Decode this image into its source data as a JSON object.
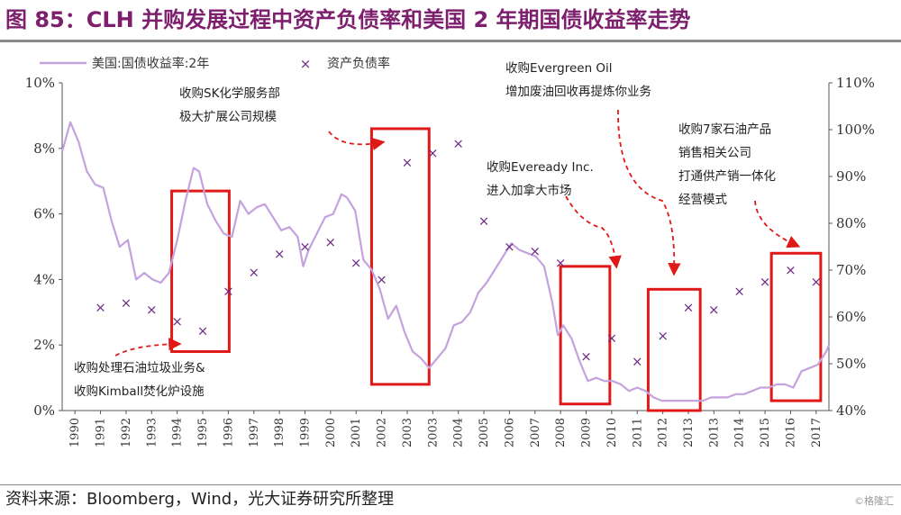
{
  "title": "图 85：CLH 并购发展过程中资产负债率和美国 2 年期国债收益率走势",
  "source": "资料来源：Bloomberg，Wind，光大证券研究所整理",
  "watermark": "©格隆汇",
  "colors": {
    "title": "#7d1f6d",
    "yield_line": "#c4a2de",
    "scatter": "#6f2a86",
    "box": "#e01818",
    "arrow": "#e01818"
  },
  "chart_data": {
    "type": "line",
    "x_range": [
      1990,
      2017
    ],
    "xtick_labels": [
      "1990",
      "1991",
      "1992",
      "1993",
      "1994",
      "1995",
      "1996",
      "1997",
      "1998",
      "1999",
      "2000",
      "2001",
      "2002",
      "2003",
      "2003",
      "2004",
      "2005",
      "2006",
      "2007",
      "2008",
      "2009",
      "2010",
      "2011",
      "2012",
      "2013",
      "2013",
      "2014",
      "2015",
      "2016",
      "2017"
    ],
    "left_axis": {
      "range": [
        0,
        10
      ],
      "tick_labels": [
        "0%",
        "2%",
        "4%",
        "6%",
        "8%",
        "10%"
      ]
    },
    "right_axis": {
      "range": [
        40,
        110
      ],
      "tick_labels": [
        "40%",
        "50%",
        "60%",
        "70%",
        "80%",
        "90%",
        "100%",
        "110%"
      ]
    },
    "legend": {
      "position": "top-left",
      "items": [
        {
          "name": "美国:国债收益率:2年",
          "marker": "line"
        },
        {
          "name": "资产负债率",
          "marker": "x"
        }
      ]
    },
    "series": [
      {
        "name": "美国:国债收益率:2年",
        "axis": "left",
        "type": "line",
        "x": [
          1990.0,
          1990.3,
          1990.6,
          1990.9,
          1991.2,
          1991.5,
          1991.8,
          1992.1,
          1992.4,
          1992.7,
          1993.0,
          1993.3,
          1993.6,
          1993.9,
          1994.2,
          1994.5,
          1994.8,
          1995.0,
          1995.3,
          1995.6,
          1995.9,
          1996.2,
          1996.5,
          1996.8,
          1997.1,
          1997.4,
          1997.7,
          1998.0,
          1998.3,
          1998.6,
          1998.8,
          1999.0,
          1999.3,
          1999.6,
          1999.9,
          2000.2,
          2000.4,
          2000.7,
          2001.0,
          2001.3,
          2001.6,
          2001.9,
          2002.2,
          2002.5,
          2002.8,
          2003.1,
          2003.4,
          2003.7,
          2004.0,
          2004.3,
          2004.6,
          2004.9,
          2005.2,
          2005.5,
          2005.8,
          2006.1,
          2006.4,
          2006.7,
          2007.0,
          2007.3,
          2007.6,
          2007.9,
          2008.1,
          2008.3,
          2008.6,
          2008.9,
          2009.2,
          2009.5,
          2009.8,
          2010.1,
          2010.4,
          2010.7,
          2011.0,
          2011.3,
          2011.6,
          2011.9,
          2012.2,
          2012.5,
          2012.8,
          2013.1,
          2013.4,
          2013.7,
          2014.0,
          2014.3,
          2014.6,
          2014.9,
          2015.2,
          2015.5,
          2015.8,
          2016.1,
          2016.4,
          2016.7,
          2017.0,
          2017.3,
          2017.6,
          2017.9,
          2018.0
        ],
        "values": [
          7.9,
          8.8,
          8.2,
          7.3,
          6.9,
          6.8,
          5.8,
          5.0,
          5.2,
          4.0,
          4.2,
          4.0,
          3.9,
          4.2,
          5.2,
          6.4,
          7.4,
          7.3,
          6.3,
          5.8,
          5.4,
          5.3,
          6.4,
          6.0,
          6.2,
          6.3,
          5.9,
          5.5,
          5.6,
          5.3,
          4.4,
          4.9,
          5.4,
          5.9,
          6.0,
          6.6,
          6.5,
          6.1,
          4.6,
          4.3,
          3.7,
          2.8,
          3.2,
          2.4,
          1.8,
          1.6,
          1.3,
          1.6,
          1.9,
          2.6,
          2.7,
          3.0,
          3.6,
          3.9,
          4.3,
          4.7,
          5.1,
          4.9,
          4.8,
          4.7,
          4.4,
          3.3,
          2.3,
          2.6,
          2.2,
          1.5,
          0.9,
          1.0,
          0.9,
          0.9,
          0.8,
          0.6,
          0.7,
          0.6,
          0.4,
          0.3,
          0.3,
          0.3,
          0.3,
          0.3,
          0.3,
          0.4,
          0.4,
          0.4,
          0.5,
          0.5,
          0.6,
          0.7,
          0.7,
          0.8,
          0.8,
          0.7,
          1.2,
          1.3,
          1.4,
          1.8,
          2.0
        ]
      },
      {
        "name": "资产负债率",
        "axis": "right",
        "type": "scatter",
        "x": [
          1991,
          1992,
          1993,
          1994,
          1995,
          1996,
          1997,
          1998,
          1999,
          2000,
          2001,
          2002,
          2003,
          2003,
          2004,
          2005,
          2006,
          2007,
          2008,
          2009,
          2010,
          2011,
          2012,
          2013,
          2013,
          2014,
          2015,
          2016,
          2017
        ],
        "values": [
          62,
          63,
          61.5,
          59,
          57,
          65.5,
          69.5,
          73.5,
          75,
          76,
          71.5,
          68,
          93,
          95,
          97,
          80.5,
          75,
          74,
          71.5,
          51.5,
          55.5,
          50.5,
          56,
          62,
          61.5,
          65.5,
          67.5,
          70,
          67.5
        ]
      }
    ],
    "highlight_boxes": [
      {
        "x_range": [
          1994.0,
          1996.1
        ],
        "y_range": [
          1.8,
          6.7
        ]
      },
      {
        "x_range": [
          2001.3,
          2003.4
        ],
        "y_range": [
          0.8,
          8.6
        ]
      },
      {
        "x_range": [
          2008.2,
          2010.0
        ],
        "y_range": [
          0.2,
          4.4
        ]
      },
      {
        "x_range": [
          2011.4,
          2013.3
        ],
        "y_range": [
          0.0,
          3.7
        ]
      },
      {
        "x_range": [
          2015.9,
          2017.7
        ],
        "y_range": [
          0.3,
          4.8
        ]
      }
    ],
    "annotations": [
      {
        "lines": [
          "收购SK化学服务部",
          "极大扩展公司规模"
        ]
      },
      {
        "lines": [
          "收购Evergreen Oil",
          "增加废油回收再提炼你业务"
        ]
      },
      {
        "lines": [
          "收购7家石油产品",
          "销售相关公司",
          "打通供产销一体化",
          "经营模式"
        ]
      },
      {
        "lines": [
          "收购Eveready Inc.",
          "进入加拿大市场"
        ]
      },
      {
        "lines": [
          "收购处理石油垃圾业务&",
          "收购Kimball焚化炉设施"
        ]
      }
    ]
  }
}
